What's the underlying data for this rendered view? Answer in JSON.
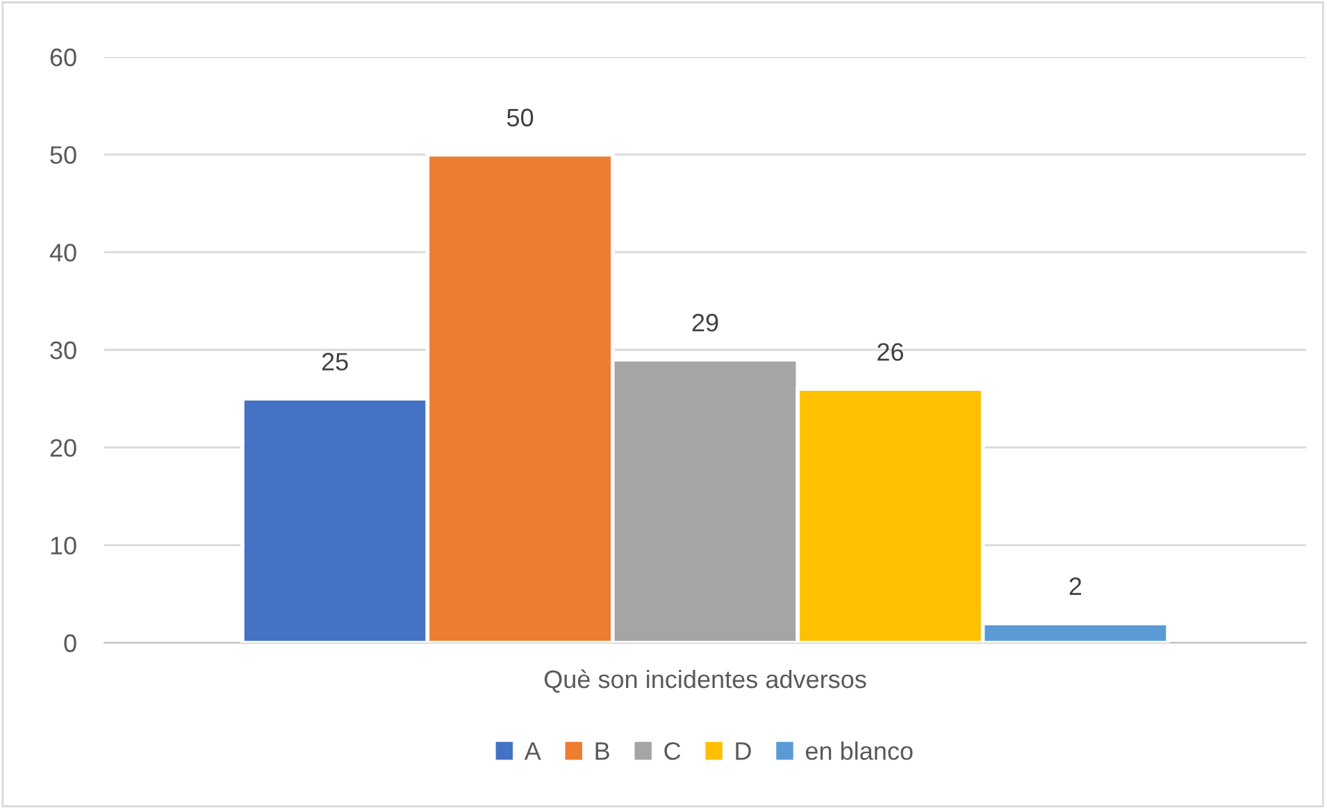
{
  "chart_data": {
    "type": "bar",
    "categories": [
      "Què son incidentes adversos"
    ],
    "series": [
      {
        "name": "A",
        "color": "#4472c4",
        "values": [
          25
        ]
      },
      {
        "name": "B",
        "color": "#ed7d31",
        "values": [
          50
        ]
      },
      {
        "name": "C",
        "color": "#a5a5a5",
        "values": [
          29
        ]
      },
      {
        "name": "D",
        "color": "#ffc000",
        "values": [
          26
        ]
      },
      {
        "name": "en blanco",
        "color": "#5b9bd5",
        "values": [
          2
        ]
      }
    ],
    "ylim": [
      0,
      60
    ],
    "yticks": [
      0,
      10,
      20,
      30,
      40,
      50,
      60
    ],
    "grid": "y",
    "legend": "bottom",
    "data_labels": true
  }
}
